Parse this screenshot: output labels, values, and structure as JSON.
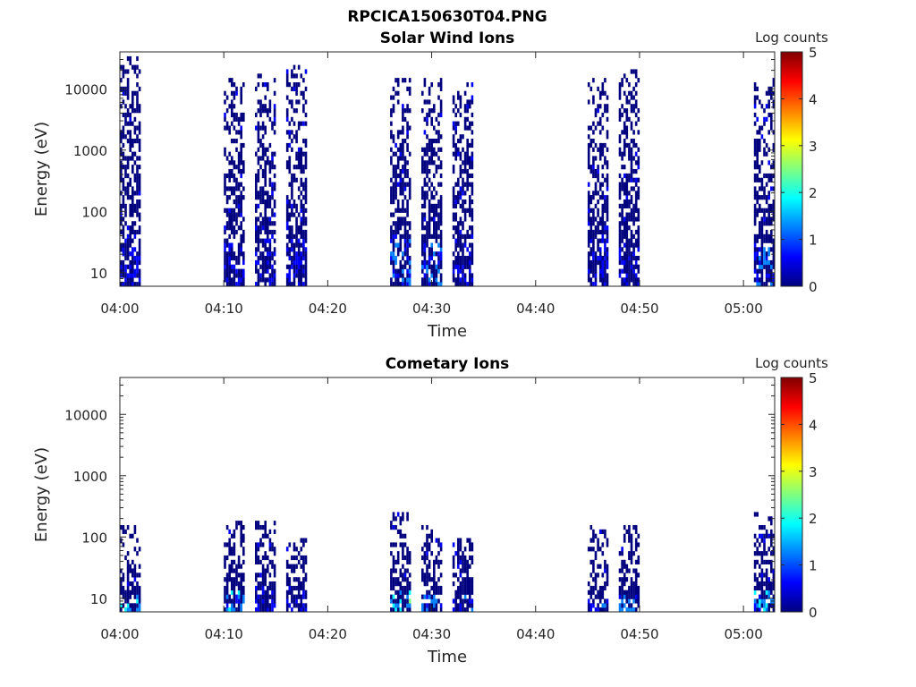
{
  "figure": {
    "title": "RPCICA150630T04.PNG"
  },
  "colormap": [
    "#00007f",
    "#0000ff",
    "#007fff",
    "#00ffff",
    "#7fff7f",
    "#ffff00",
    "#ff7f00",
    "#ff0000",
    "#7f0000"
  ],
  "chart_data": [
    {
      "type": "heatmap",
      "title": "Solar Wind Ions",
      "xlabel": "Time",
      "ylabel": "Energy (eV)",
      "yscale": "log",
      "xlim": [
        "04:00",
        "05:03"
      ],
      "ylim": [
        6,
        40000
      ],
      "x_ticks": [
        "04:00",
        "04:10",
        "04:20",
        "04:30",
        "04:40",
        "04:50",
        "05:00"
      ],
      "y_ticks": [
        "10",
        "100",
        "1000",
        "10000"
      ],
      "colorbar": {
        "label": "Log counts",
        "range": [
          0,
          5
        ],
        "ticks": [
          "0",
          "1",
          "2",
          "3",
          "4",
          "5"
        ]
      },
      "bursts": [
        {
          "start": "04:00",
          "end": "04:02",
          "e_min": 6,
          "e_max": 38000,
          "peak_log_counts": 1.0
        },
        {
          "start": "04:10",
          "end": "04:12",
          "e_min": 6,
          "e_max": 15000,
          "peak_log_counts": 1.0
        },
        {
          "start": "04:13",
          "end": "04:15",
          "e_min": 6,
          "e_max": 20000,
          "peak_log_counts": 1.0
        },
        {
          "start": "04:16",
          "end": "04:18",
          "e_min": 6,
          "e_max": 28000,
          "peak_log_counts": 1.0
        },
        {
          "start": "04:26",
          "end": "04:28",
          "e_min": 6,
          "e_max": 16000,
          "peak_log_counts": 1.6
        },
        {
          "start": "04:29",
          "end": "04:31",
          "e_min": 6,
          "e_max": 15000,
          "peak_log_counts": 1.6
        },
        {
          "start": "04:32",
          "end": "04:34",
          "e_min": 6,
          "e_max": 13000,
          "peak_log_counts": 1.0
        },
        {
          "start": "04:45",
          "end": "04:47",
          "e_min": 6,
          "e_max": 16000,
          "peak_log_counts": 1.0
        },
        {
          "start": "04:48",
          "end": "04:50",
          "e_min": 6,
          "e_max": 22000,
          "peak_log_counts": 1.0
        },
        {
          "start": "05:01",
          "end": "05:03",
          "e_min": 6,
          "e_max": 15000,
          "peak_log_counts": 1.6
        }
      ]
    },
    {
      "type": "heatmap",
      "title": "Cometary Ions",
      "xlabel": "Time",
      "ylabel": "Energy (eV)",
      "yscale": "log",
      "xlim": [
        "04:00",
        "05:03"
      ],
      "ylim": [
        6,
        40000
      ],
      "x_ticks": [
        "04:00",
        "04:10",
        "04:20",
        "04:30",
        "04:40",
        "04:50",
        "05:00"
      ],
      "y_ticks": [
        "10",
        "100",
        "1000",
        "10000"
      ],
      "colorbar": {
        "label": "Log counts",
        "range": [
          0,
          5
        ],
        "ticks": [
          "0",
          "1",
          "2",
          "3",
          "4",
          "5"
        ]
      },
      "bursts": [
        {
          "start": "04:00",
          "end": "04:02",
          "e_min": 6,
          "e_max": 150,
          "peak_log_counts": 2.0
        },
        {
          "start": "04:10",
          "end": "04:12",
          "e_min": 6,
          "e_max": 180,
          "peak_log_counts": 2.0
        },
        {
          "start": "04:13",
          "end": "04:15",
          "e_min": 6,
          "e_max": 180,
          "peak_log_counts": 1.0
        },
        {
          "start": "04:16",
          "end": "04:18",
          "e_min": 6,
          "e_max": 100,
          "peak_log_counts": 1.0
        },
        {
          "start": "04:26",
          "end": "04:28",
          "e_min": 6,
          "e_max": 270,
          "peak_log_counts": 2.6
        },
        {
          "start": "04:29",
          "end": "04:31",
          "e_min": 6,
          "e_max": 150,
          "peak_log_counts": 1.8
        },
        {
          "start": "04:32",
          "end": "04:34",
          "e_min": 6,
          "e_max": 100,
          "peak_log_counts": 1.5
        },
        {
          "start": "04:45",
          "end": "04:47",
          "e_min": 6,
          "e_max": 160,
          "peak_log_counts": 1.6
        },
        {
          "start": "04:48",
          "end": "04:50",
          "e_min": 6,
          "e_max": 160,
          "peak_log_counts": 1.8
        },
        {
          "start": "05:01",
          "end": "05:03",
          "e_min": 6,
          "e_max": 270,
          "peak_log_counts": 2.0
        }
      ]
    }
  ]
}
